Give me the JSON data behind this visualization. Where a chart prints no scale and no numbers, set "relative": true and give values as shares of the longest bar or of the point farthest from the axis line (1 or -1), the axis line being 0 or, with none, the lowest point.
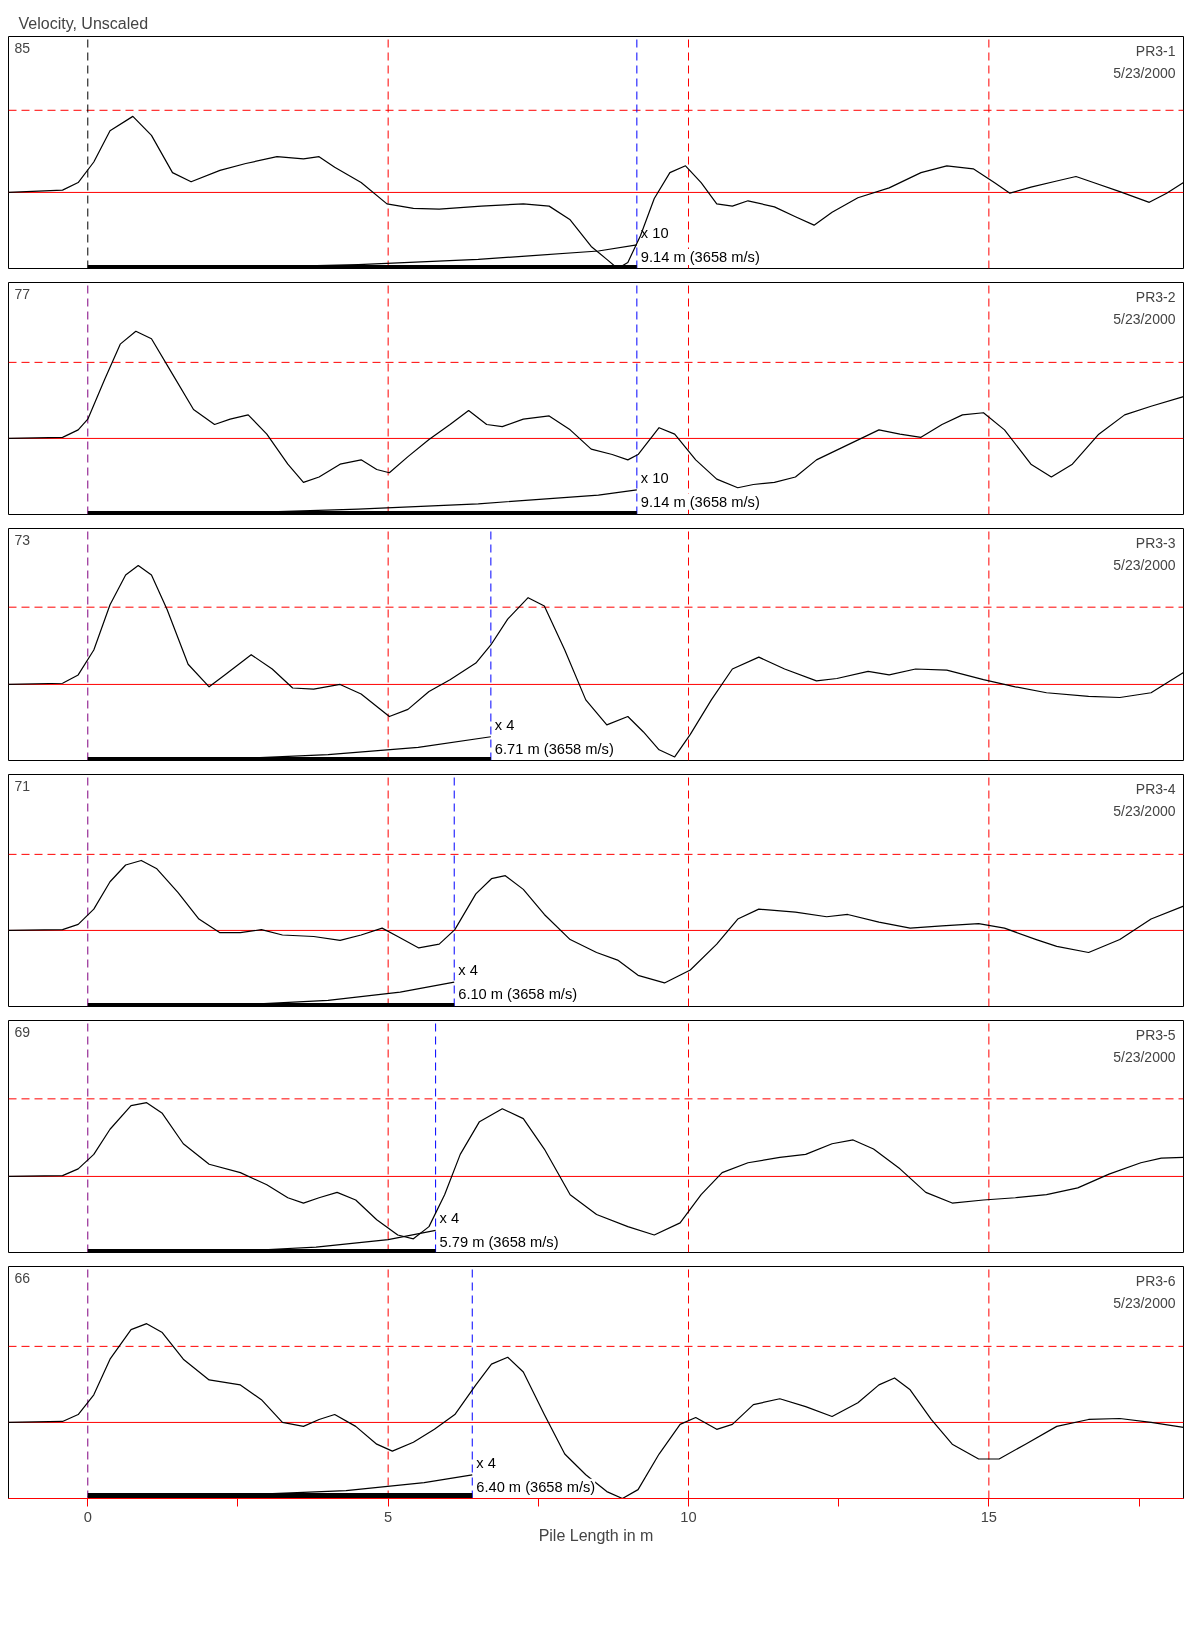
{
  "chart_data": [
    {
      "type": "line",
      "relative": true,
      "title": "Velocity, Unscaled",
      "xlim": [
        -1.32,
        18.24
      ],
      "tick_labels": false,
      "annotations": [
        "85",
        "PR3-1",
        "5/23/2000",
        {
          "text": "x 10",
          "x": 9.14,
          "y": -0.69
        },
        {
          "text": "9.14 m (3658 m/s)",
          "x": 9.14,
          "y": -0.69
        }
      ],
      "series": [
        {
          "color": "#000000",
          "x": [
            -1.32,
            -0.42,
            -0.16,
            0.1,
            0.37,
            0.75,
            1.06,
            1.41,
            1.72,
            2.2,
            2.63,
            3.15,
            3.59,
            3.85,
            4.11,
            4.55,
            4.98,
            5.42,
            5.85,
            6.55,
            7.25,
            7.68,
            8.03,
            8.38,
            8.64,
            8.82,
            8.99,
            9.2,
            9.43,
            9.69,
            9.95,
            10.21,
            10.47,
            10.73,
            10.99,
            11.43,
            11.78,
            12.09,
            12.39,
            12.82,
            13.34,
            13.87,
            14.3,
            14.74,
            15.09,
            15.35,
            15.7,
            16.13,
            16.45,
            16.74,
            17.18,
            17.67,
            17.96,
            18.24
          ],
          "values": [
            0,
            0.03,
            0.13,
            0.4,
            0.81,
            1.0,
            0.75,
            0.26,
            0.14,
            0.29,
            0.38,
            0.47,
            0.44,
            0.47,
            0.33,
            0.13,
            -0.15,
            -0.21,
            -0.22,
            -0.18,
            -0.15,
            -0.18,
            -0.36,
            -0.71,
            -0.88,
            -1.0,
            -0.92,
            -0.57,
            -0.08,
            0.26,
            0.35,
            0.13,
            -0.15,
            -0.18,
            -0.11,
            -0.19,
            -0.32,
            -0.43,
            -0.26,
            -0.07,
            0.06,
            0.26,
            0.35,
            0.31,
            0.13,
            -0.01,
            0.07,
            0.15,
            0.21,
            0.13,
            0.01,
            -0.13,
            -0.01,
            0.13
          ]
        },
        {
          "color": "#000000",
          "x": [
            0,
            2.27,
            4.5,
            6.5,
            8.5,
            9.14
          ],
          "values": [
            -1.0,
            -0.99,
            -0.95,
            -0.88,
            -0.77,
            -0.69
          ]
        },
        {
          "color": "#000000",
          "x": [
            0,
            9.14
          ],
          "values": [
            -1.0,
            -1.0
          ]
        }
      ],
      "ref_lines": [
        {
          "axis": "y",
          "value": 0,
          "color": "#ff0000",
          "line_style": "solid"
        },
        {
          "axis": "y",
          "value": 1.08,
          "color": "#ff0000",
          "line_style": "dashed"
        },
        {
          "axis": "x",
          "value": 0,
          "color": "#000000",
          "line_style": "dashed"
        },
        {
          "axis": "x",
          "value": 5,
          "color": "#ff0000",
          "line_style": "dashed"
        },
        {
          "axis": "x",
          "value": 10,
          "color": "#ff0000",
          "line_style": "dashed"
        },
        {
          "axis": "x",
          "value": 15,
          "color": "#ff0000",
          "line_style": "dashed"
        },
        {
          "axis": "x",
          "value": 9.14,
          "color": "#0000ff",
          "line_style": "dashed"
        }
      ]
    },
    {
      "type": "line",
      "relative": true,
      "xlim": [
        -1.32,
        18.24
      ],
      "tick_labels": false,
      "annotations": [
        "77",
        "PR3-2",
        "5/23/2000",
        {
          "text": "x 10",
          "x": 9.14,
          "y": -0.48
        },
        {
          "text": "9.14 m (3658 m/s)",
          "x": 9.14,
          "y": -0.48
        }
      ],
      "series": [
        {
          "color": "#000000",
          "x": [
            -1.32,
            -0.42,
            -0.16,
            0,
            0.28,
            0.54,
            0.8,
            1.06,
            1.41,
            1.76,
            2.11,
            2.37,
            2.67,
            2.98,
            3.33,
            3.59,
            3.85,
            4.2,
            4.55,
            4.81,
            5.02,
            5.33,
            5.68,
            6.03,
            6.34,
            6.64,
            6.9,
            7.25,
            7.68,
            8.03,
            8.38,
            8.73,
            8.99,
            9.16,
            9.51,
            9.77,
            10.12,
            10.47,
            10.82,
            11.08,
            11.43,
            11.78,
            12.13,
            12.65,
            13.17,
            13.52,
            13.87,
            14.22,
            14.56,
            14.91,
            15.26,
            15.7,
            16.04,
            16.39,
            16.83,
            17.26,
            17.7,
            18.24
          ],
          "values": [
            0,
            0.01,
            0.08,
            0.18,
            0.55,
            0.88,
            1.0,
            0.93,
            0.6,
            0.27,
            0.13,
            0.18,
            0.22,
            0.04,
            -0.24,
            -0.41,
            -0.36,
            -0.24,
            -0.2,
            -0.29,
            -0.32,
            -0.17,
            -0.01,
            0.13,
            0.26,
            0.13,
            0.11,
            0.18,
            0.21,
            0.08,
            -0.1,
            -0.15,
            -0.2,
            -0.15,
            0.1,
            0.04,
            -0.2,
            -0.38,
            -0.46,
            -0.43,
            -0.41,
            -0.36,
            -0.2,
            -0.06,
            0.08,
            0.04,
            0.01,
            0.13,
            0.22,
            0.24,
            0.08,
            -0.24,
            -0.36,
            -0.24,
            0.04,
            0.22,
            0.3,
            0.39
          ]
        },
        {
          "color": "#000000",
          "x": [
            0,
            2.27,
            4.5,
            6.5,
            8.5,
            9.14
          ],
          "values": [
            -0.71,
            -0.7,
            -0.66,
            -0.61,
            -0.53,
            -0.48
          ]
        },
        {
          "color": "#000000",
          "x": [
            0,
            9.14
          ],
          "values": [
            -0.71,
            -0.71
          ]
        }
      ],
      "ref_lines": [
        {
          "axis": "y",
          "value": 0,
          "color": "#ff0000",
          "line_style": "solid"
        },
        {
          "axis": "y",
          "value": 0.71,
          "color": "#ff0000",
          "line_style": "dashed"
        },
        {
          "axis": "x",
          "value": 0,
          "color": "#800080",
          "line_style": "dashed"
        },
        {
          "axis": "x",
          "value": 5,
          "color": "#ff0000",
          "line_style": "dashed"
        },
        {
          "axis": "x",
          "value": 10,
          "color": "#ff0000",
          "line_style": "dashed"
        },
        {
          "axis": "x",
          "value": 15,
          "color": "#ff0000",
          "line_style": "dashed"
        },
        {
          "axis": "x",
          "value": 9.14,
          "color": "#0000ff",
          "line_style": "dashed"
        }
      ]
    },
    {
      "type": "line",
      "relative": true,
      "xlim": [
        -1.32,
        18.24
      ],
      "tick_labels": false,
      "annotations": [
        "73",
        "PR3-3",
        "5/23/2000",
        {
          "text": "x 4",
          "x": 6.71,
          "y": -0.44
        },
        {
          "text": "6.71 m (3658 m/s)",
          "x": 6.71,
          "y": -0.44
        }
      ],
      "series": [
        {
          "color": "#000000",
          "x": [
            -1.32,
            -0.42,
            -0.16,
            0.1,
            0.37,
            0.63,
            0.84,
            1.06,
            1.32,
            1.67,
            2.02,
            2.28,
            2.72,
            3.07,
            3.41,
            3.76,
            4.2,
            4.55,
            5.02,
            5.33,
            5.68,
            6.03,
            6.46,
            6.72,
            6.99,
            7.33,
            7.6,
            7.94,
            8.29,
            8.64,
            8.99,
            9.25,
            9.51,
            9.77,
            10.03,
            10.38,
            10.73,
            11.17,
            11.6,
            12.13,
            12.47,
            12.99,
            13.34,
            13.78,
            14.3,
            14.91,
            15.44,
            15.96,
            16.66,
            17.18,
            17.7,
            18.24
          ],
          "values": [
            0,
            0.01,
            0.08,
            0.29,
            0.67,
            0.92,
            1.0,
            0.92,
            0.63,
            0.17,
            -0.02,
            0.08,
            0.25,
            0.13,
            -0.03,
            -0.04,
            0,
            -0.08,
            -0.27,
            -0.21,
            -0.06,
            0.04,
            0.18,
            0.34,
            0.55,
            0.73,
            0.66,
            0.29,
            -0.13,
            -0.34,
            -0.27,
            -0.4,
            -0.55,
            -0.61,
            -0.42,
            -0.13,
            0.13,
            0.23,
            0.13,
            0.03,
            0.05,
            0.11,
            0.08,
            0.13,
            0.12,
            0.04,
            -0.02,
            -0.07,
            -0.1,
            -0.11,
            -0.07,
            0.1
          ]
        },
        {
          "color": "#000000",
          "x": [
            0,
            2.27,
            4.0,
            5.5,
            6.71
          ],
          "values": [
            -0.64,
            -0.63,
            -0.59,
            -0.53,
            -0.44
          ]
        },
        {
          "color": "#000000",
          "x": [
            0,
            6.71
          ],
          "values": [
            -0.64,
            -0.64
          ]
        }
      ],
      "ref_lines": [
        {
          "axis": "y",
          "value": 0,
          "color": "#ff0000",
          "line_style": "solid"
        },
        {
          "axis": "y",
          "value": 0.65,
          "color": "#ff0000",
          "line_style": "dashed"
        },
        {
          "axis": "x",
          "value": 0,
          "color": "#800080",
          "line_style": "dashed"
        },
        {
          "axis": "x",
          "value": 5,
          "color": "#ff0000",
          "line_style": "dashed"
        },
        {
          "axis": "x",
          "value": 10,
          "color": "#ff0000",
          "line_style": "dashed"
        },
        {
          "axis": "x",
          "value": 15,
          "color": "#ff0000",
          "line_style": "dashed"
        },
        {
          "axis": "x",
          "value": 6.71,
          "color": "#0000ff",
          "line_style": "dashed"
        }
      ]
    },
    {
      "type": "line",
      "relative": true,
      "xlim": [
        -1.32,
        18.24
      ],
      "tick_labels": false,
      "annotations": [
        "71",
        "PR3-4",
        "5/23/2000",
        {
          "text": "x 4",
          "x": 6.1,
          "y": -0.68
        },
        {
          "text": "6.10 m (3658 m/s)",
          "x": 6.1,
          "y": -0.68
        }
      ],
      "series": [
        {
          "color": "#000000",
          "x": [
            -1.32,
            -0.42,
            -0.16,
            0.1,
            0.37,
            0.63,
            0.89,
            1.15,
            1.5,
            1.85,
            2.2,
            2.54,
            2.89,
            3.24,
            3.76,
            4.2,
            4.55,
            4.9,
            5.16,
            5.51,
            5.85,
            6.11,
            6.46,
            6.72,
            6.95,
            7.25,
            7.6,
            8.03,
            8.47,
            8.82,
            9.16,
            9.6,
            10.03,
            10.47,
            10.82,
            11.17,
            11.78,
            12.3,
            12.65,
            13.17,
            13.69,
            14.22,
            14.83,
            15.26,
            15.79,
            16.13,
            16.66,
            17.18,
            17.7,
            18.24
          ],
          "values": [
            0,
            0.01,
            0.08,
            0.28,
            0.64,
            0.86,
            0.92,
            0.81,
            0.5,
            0.15,
            -0.03,
            -0.03,
            0.01,
            -0.06,
            -0.08,
            -0.13,
            -0.06,
            0.03,
            -0.08,
            -0.23,
            -0.18,
            0.01,
            0.48,
            0.68,
            0.72,
            0.54,
            0.21,
            -0.12,
            -0.29,
            -0.39,
            -0.59,
            -0.69,
            -0.52,
            -0.18,
            0.15,
            0.28,
            0.24,
            0.18,
            0.21,
            0.11,
            0.03,
            0.06,
            0.09,
            0.03,
            -0.12,
            -0.21,
            -0.29,
            -0.12,
            0.15,
            0.32
          ]
        },
        {
          "color": "#000000",
          "x": [
            0,
            2.27,
            4.0,
            5.2,
            6.1
          ],
          "values": [
            -1.0,
            -0.99,
            -0.92,
            -0.81,
            -0.68
          ]
        },
        {
          "color": "#000000",
          "x": [
            0,
            6.1
          ],
          "values": [
            -1.0,
            -1.0
          ]
        }
      ],
      "ref_lines": [
        {
          "axis": "y",
          "value": 0,
          "color": "#ff0000",
          "line_style": "solid"
        },
        {
          "axis": "y",
          "value": 1.0,
          "color": "#ff0000",
          "line_style": "dashed"
        },
        {
          "axis": "x",
          "value": 0,
          "color": "#800080",
          "line_style": "dashed"
        },
        {
          "axis": "x",
          "value": 5,
          "color": "#ff0000",
          "line_style": "dashed"
        },
        {
          "axis": "x",
          "value": 10,
          "color": "#ff0000",
          "line_style": "dashed"
        },
        {
          "axis": "x",
          "value": 15,
          "color": "#ff0000",
          "line_style": "dashed"
        },
        {
          "axis": "x",
          "value": 6.1,
          "color": "#0000ff",
          "line_style": "dashed"
        }
      ]
    },
    {
      "type": "line",
      "relative": true,
      "xlim": [
        -1.32,
        18.24
      ],
      "tick_labels": false,
      "annotations": [
        "69",
        "PR3-5",
        "5/23/2000",
        {
          "text": "x 4",
          "x": 5.79,
          "y": -0.71
        },
        {
          "text": "5.79 m (3658 m/s)",
          "x": 5.79,
          "y": -0.71
        }
      ],
      "series": [
        {
          "color": "#000000",
          "x": [
            -1.32,
            -0.42,
            -0.16,
            0.1,
            0.37,
            0.72,
            0.98,
            1.24,
            1.59,
            2.02,
            2.54,
            2.98,
            3.33,
            3.59,
            3.85,
            4.15,
            4.46,
            4.81,
            5.16,
            5.42,
            5.68,
            5.94,
            6.2,
            6.52,
            6.9,
            7.25,
            7.6,
            8.03,
            8.47,
            8.99,
            9.43,
            9.86,
            10.21,
            10.56,
            10.99,
            11.52,
            11.95,
            12.39,
            12.74,
            13.08,
            13.52,
            13.95,
            14.39,
            14.91,
            15.44,
            15.96,
            16.48,
            17.0,
            17.53,
            17.87,
            18.24
          ],
          "values": [
            0,
            0.01,
            0.1,
            0.29,
            0.62,
            0.93,
            0.97,
            0.83,
            0.43,
            0.16,
            0.05,
            -0.11,
            -0.28,
            -0.35,
            -0.28,
            -0.21,
            -0.31,
            -0.57,
            -0.77,
            -0.82,
            -0.66,
            -0.24,
            0.29,
            0.72,
            0.89,
            0.76,
            0.36,
            -0.24,
            -0.5,
            -0.66,
            -0.77,
            -0.61,
            -0.24,
            0.05,
            0.18,
            0.25,
            0.29,
            0.43,
            0.48,
            0.36,
            0.1,
            -0.21,
            -0.35,
            -0.31,
            -0.28,
            -0.24,
            -0.15,
            0.03,
            0.18,
            0.24,
            0.25
          ]
        },
        {
          "color": "#000000",
          "x": [
            0,
            2.27,
            3.8,
            5.0,
            5.79
          ],
          "values": [
            -1.0,
            -0.99,
            -0.93,
            -0.83,
            -0.71
          ]
        },
        {
          "color": "#000000",
          "x": [
            0,
            5.79
          ],
          "values": [
            -1.0,
            -1.0
          ]
        }
      ],
      "ref_lines": [
        {
          "axis": "y",
          "value": 0,
          "color": "#ff0000",
          "line_style": "solid"
        },
        {
          "axis": "y",
          "value": 1.02,
          "color": "#ff0000",
          "line_style": "dashed"
        },
        {
          "axis": "x",
          "value": 0,
          "color": "#800080",
          "line_style": "dashed"
        },
        {
          "axis": "x",
          "value": 5,
          "color": "#ff0000",
          "line_style": "dashed"
        },
        {
          "axis": "x",
          "value": 10,
          "color": "#ff0000",
          "line_style": "dashed"
        },
        {
          "axis": "x",
          "value": 15,
          "color": "#ff0000",
          "line_style": "dashed"
        },
        {
          "axis": "x",
          "value": 5.79,
          "color": "#0000ff",
          "line_style": "dashed"
        }
      ]
    },
    {
      "type": "line",
      "relative": true,
      "xlim": [
        -1.32,
        18.24
      ],
      "xlabel": "Pile Length in m",
      "xticks": [
        0,
        {
          "value": 2.5,
          "label": null
        },
        5,
        {
          "value": 7.5,
          "label": null
        },
        10,
        {
          "value": 12.5,
          "label": null
        },
        15,
        {
          "value": 17.5,
          "label": null
        }
      ],
      "annotations": [
        "66",
        "PR3-6",
        "5/23/2000",
        {
          "text": "x 4",
          "x": 6.4,
          "y": -0.53
        },
        {
          "text": "6.40 m (3658 m/s)",
          "x": 6.4,
          "y": -0.53
        }
      ],
      "series": [
        {
          "color": "#000000",
          "x": [
            -1.32,
            -0.42,
            -0.16,
            0.1,
            0.37,
            0.72,
            0.98,
            1.24,
            1.59,
            2.02,
            2.54,
            2.89,
            3.24,
            3.59,
            3.85,
            4.11,
            4.46,
            4.81,
            5.07,
            5.42,
            5.77,
            6.11,
            6.46,
            6.72,
            6.99,
            7.25,
            7.6,
            7.94,
            8.29,
            8.64,
            8.9,
            9.16,
            9.51,
            9.86,
            10.12,
            10.47,
            10.73,
            11.08,
            11.52,
            11.95,
            12.39,
            12.82,
            13.17,
            13.43,
            13.69,
            14.04,
            14.39,
            14.83,
            15.17,
            15.61,
            16.13,
            16.66,
            17.18,
            17.7,
            18.24
          ],
          "values": [
            0,
            0.01,
            0.08,
            0.28,
            0.64,
            0.94,
            1.0,
            0.91,
            0.64,
            0.43,
            0.38,
            0.23,
            0,
            -0.04,
            0.03,
            0.08,
            -0.04,
            -0.22,
            -0.29,
            -0.2,
            -0.07,
            0.08,
            0.38,
            0.59,
            0.66,
            0.51,
            0.08,
            -0.32,
            -0.53,
            -0.7,
            -0.77,
            -0.68,
            -0.32,
            -0.02,
            0.05,
            -0.07,
            -0.02,
            0.18,
            0.24,
            0.16,
            0.06,
            0.2,
            0.38,
            0.45,
            0.33,
            0.03,
            -0.22,
            -0.37,
            -0.37,
            -0.22,
            -0.04,
            0.03,
            0.04,
            0,
            -0.05
          ]
        },
        {
          "color": "#000000",
          "x": [
            0,
            2.27,
            4.3,
            5.6,
            6.4
          ],
          "values": [
            -0.75,
            -0.74,
            -0.69,
            -0.61,
            -0.53
          ]
        },
        {
          "color": "#000000",
          "x": [
            0,
            6.4
          ],
          "values": [
            -0.75,
            -0.75
          ]
        }
      ],
      "ref_lines": [
        {
          "axis": "y",
          "value": 0,
          "color": "#ff0000",
          "line_style": "solid"
        },
        {
          "axis": "y",
          "value": 0.77,
          "color": "#ff0000",
          "line_style": "dashed"
        },
        {
          "axis": "x",
          "value": 0,
          "color": "#800080",
          "line_style": "dashed"
        },
        {
          "axis": "x",
          "value": 5,
          "color": "#ff0000",
          "line_style": "dashed"
        },
        {
          "axis": "x",
          "value": 10,
          "color": "#ff0000",
          "line_style": "dashed"
        },
        {
          "axis": "x",
          "value": 15,
          "color": "#ff0000",
          "line_style": "dashed"
        },
        {
          "axis": "x",
          "value": 6.4,
          "color": "#0000ff",
          "line_style": "dashed"
        }
      ]
    }
  ]
}
